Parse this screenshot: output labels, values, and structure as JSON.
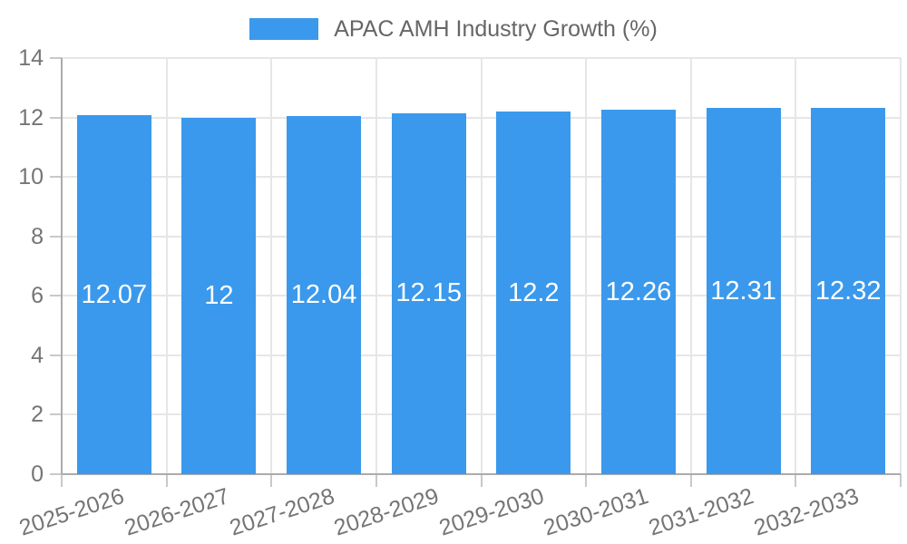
{
  "chart_data": {
    "type": "bar",
    "title": "",
    "xlabel": "",
    "ylabel": "",
    "legend_position": "top",
    "grid": true,
    "categories": [
      "2025-2026",
      "2026-2027",
      "2027-2028",
      "2028-2029",
      "2029-2030",
      "2030-2031",
      "2031-2032",
      "2032-2033"
    ],
    "series": [
      {
        "name": "APAC AMH Industry Growth (%)",
        "values": [
          12.07,
          12,
          12.04,
          12.15,
          12.2,
          12.26,
          12.31,
          12.32
        ]
      }
    ],
    "ylim": [
      0,
      14
    ],
    "ytick_step": 2,
    "yticks": [
      0,
      2,
      4,
      6,
      8,
      10,
      12,
      14
    ],
    "colors": {
      "bar": "#3A99EC",
      "bar_value_label": "#FFFFFF",
      "legend_text": "#666666",
      "axis_text": "#757575",
      "gridline": "#E6E6E6",
      "axis_line": "#ABABAB",
      "tick_mark": "#C9C9C9",
      "background": "#FFFFFF"
    }
  }
}
